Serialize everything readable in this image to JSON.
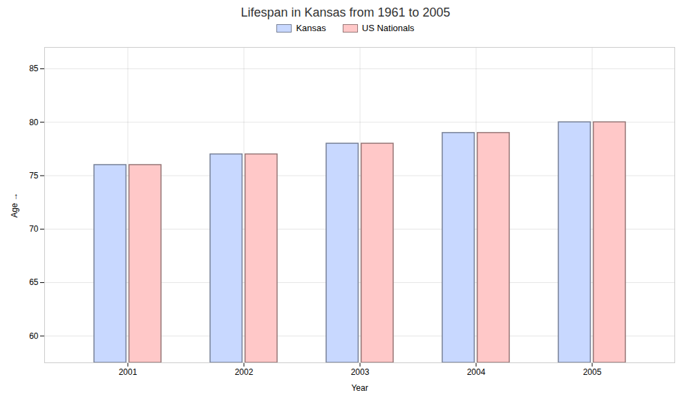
{
  "chart_data": {
    "type": "bar",
    "title": "Lifespan in Kansas from 1961 to 2005",
    "xlabel": "Year",
    "ylabel": "Age",
    "categories": [
      "2001",
      "2002",
      "2003",
      "2004",
      "2005"
    ],
    "series": [
      {
        "name": "Kansas",
        "color": "#c8d8ff",
        "values": [
          76,
          77,
          78,
          79,
          80
        ]
      },
      {
        "name": "US Nationals",
        "color": "#ffc8c8",
        "values": [
          76,
          77,
          78,
          79,
          80
        ]
      }
    ],
    "ylim": [
      57.5,
      87
    ],
    "yticks": [
      60,
      65,
      70,
      75,
      80,
      85
    ],
    "grid": true,
    "legend": "top"
  }
}
